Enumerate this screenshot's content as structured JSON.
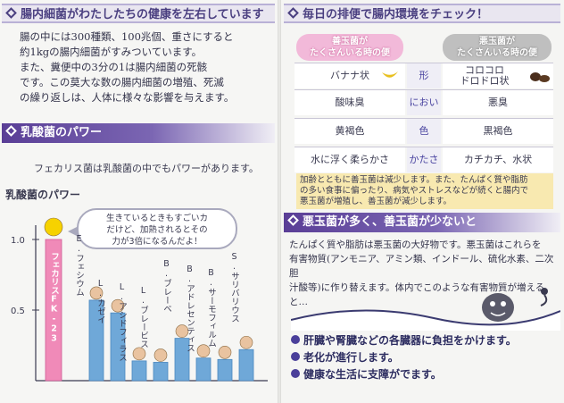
{
  "left": {
    "header1": "腸内細菌がわたしたちの健康を左右しています",
    "body1": [
      "腸の中には300種類、100兆個、重さにすると",
      "約1kgの腸内細菌がすみついています。",
      "また、糞便中の3分の1は腸内細菌の死骸",
      "です。この莫大な数の腸内細菌の増殖、死滅",
      "の繰り返しは、人体に様々な影響を与えます。"
    ],
    "header2": "乳酸菌のパワー",
    "intro": "フェカリス菌は乳酸菌の中でもパワーがあります。",
    "chart_title": "乳酸菌のパワー",
    "bubble": [
      "生きているときもすごいカ",
      "だけど、加熱されるとその",
      "力が3倍になるんだよ！"
    ]
  },
  "chart_data": {
    "type": "bar",
    "title": "乳酸菌のパワー",
    "yticks": [
      "1.0",
      "0.5"
    ],
    "ylim": [
      0,
      1.0
    ],
    "categories": [
      "フェカリスFK-23",
      "E.フェシウム",
      "L.カゼイ",
      "L.アシドフィラス",
      "L.ブレービス",
      "B.ブレーベ",
      "B.アドレセンティス",
      "B.サーモフィルム",
      "S.サリバリウス"
    ],
    "values": [
      1.0,
      0.57,
      0.48,
      0.14,
      0.13,
      0.3,
      0.16,
      0.15,
      0.22
    ]
  },
  "right": {
    "header1": "毎日の排便で腸内環境をチェック！",
    "good_head": [
      "善玉菌が",
      "たくさんいる時の便"
    ],
    "bad_head": [
      "悪玉菌が",
      "たくさんいる時の便"
    ],
    "rows": [
      {
        "good": "バナナ状",
        "mid": "形",
        "bad": "コロコロ ドロドロ状"
      },
      {
        "good": "酸味臭",
        "mid": "におい",
        "bad": "悪臭"
      },
      {
        "good": "黄褐色",
        "mid": "色",
        "bad": "黒褐色"
      },
      {
        "good": "水に浮く柔らかさ",
        "mid": "かたさ",
        "bad": "カチカチ、水状"
      }
    ],
    "note": [
      "加齢とともに善玉菌は減少します。また、たんぱく質や脂肪",
      "の多い食事に偏ったり、病気やストレスなどが続くと腸内で",
      "悪玉菌が増殖し、善玉菌が減少します。"
    ],
    "header2": "悪玉菌が多く、善玉菌が少ないと",
    "body2": [
      "たんぱく質や脂肪は悪玉菌の大好物です。悪玉菌はこれらを",
      "有害物質(アンモニア、アミン類、インドール、硫化水素、二次胆",
      "汁酸等)に作り替えます。体内でこのような有害物質が増えると…"
    ],
    "bullets": [
      "肝臓や腎臓などの各臓器に負担をかけます。",
      "老化が進行します。",
      "健康な生活に支障がでます。"
    ]
  },
  "colors": {
    "accent": "#5a3e96",
    "good": "#f2b9d9",
    "bad": "#bfbfbf",
    "note": "#f8e9b0",
    "bar": "#6fa8d8",
    "bar_main": "#f08ab8"
  }
}
